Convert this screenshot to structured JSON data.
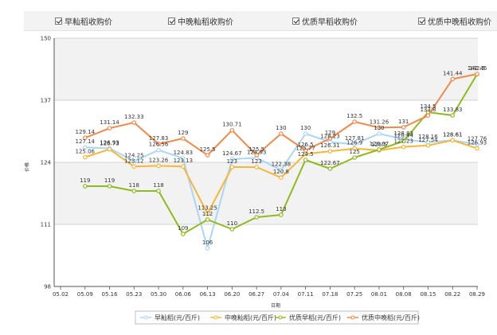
{
  "toggles": [
    {
      "label": "早籼稻收购价",
      "checked": true
    },
    {
      "label": "中晚籼稻收购价",
      "checked": true
    },
    {
      "label": "优质早稻收购价",
      "checked": true
    },
    {
      "label": "优质中晚稻收购价",
      "checked": true
    }
  ],
  "chart_data": {
    "type": "line",
    "title": "",
    "xlabel": "日期",
    "ylabel": "价格",
    "ylim": [
      98,
      150
    ],
    "yticks": [
      98,
      111,
      124,
      137,
      150
    ],
    "grid": true,
    "legend_position": "bottom",
    "categories": [
      "05.02",
      "05.09",
      "05.16",
      "05.23",
      "05.30",
      "06.06",
      "06.13",
      "06.20",
      "06.27",
      "07.04",
      "07.11",
      "07.18",
      "07.25",
      "08.01",
      "08.08",
      "08.15",
      "08.22",
      "08.29"
    ],
    "series": [
      {
        "name": "早籼稻(元/百斤)",
        "color": "#a9d6f5",
        "values": [
          null,
          127.14,
          126.93,
          124.25,
          126.56,
          124.83,
          106,
          124.67,
          124.93,
          122.38,
          130,
          128.23,
          127.81,
          130,
          128.83,
          128.16,
          128.61,
          127.76
        ],
        "labels": [
          "",
          "127.14",
          "126.93",
          "124.25",
          "126.56",
          "124.83",
          "106",
          "124.67",
          "124.93",
          "122.38",
          "130",
          "128.23",
          "127.81",
          "130",
          "128.83",
          "128.16",
          "128.61",
          "127.76"
        ]
      },
      {
        "name": "中晚籼稻(元/百斤)",
        "color": "#f6b637",
        "values": [
          null,
          125.06,
          126.73,
          123.12,
          123.26,
          123.13,
          113.25,
          123,
          123,
          120.8,
          125.77,
          126.31,
          126.9,
          126.5,
          127.23,
          127.54,
          128.61,
          126.93
        ],
        "labels": [
          "",
          "125.06",
          "126.73",
          "123.12",
          "123.26",
          "123.13",
          "113.25",
          "123",
          "123",
          "120.8",
          "125.77",
          "126.31",
          "126.9",
          "126.5",
          "127.23",
          "127.54",
          "128.61",
          "126.93"
        ]
      },
      {
        "name": "优质早稻(元/百斤)",
        "color": "#8fba1e",
        "values": [
          null,
          119,
          119,
          118,
          118,
          109,
          112,
          110,
          112.5,
          113,
          124.5,
          122.67,
          125,
          126.67,
          128.44,
          134.5,
          133.83,
          142.46
        ],
        "labels": [
          "",
          "119",
          "119",
          "118",
          "118",
          "109",
          "112",
          "110",
          "112.5",
          "113",
          "124.5",
          "122.67",
          "125",
          "126.67",
          "128.44",
          "134.5",
          "133.83",
          "142.46"
        ]
      },
      {
        "name": "优质中晚稻(元/百斤)",
        "color": "#f08a4b",
        "values": [
          null,
          129.14,
          131.14,
          132.33,
          127.83,
          129,
          125.5,
          130.71,
          125.5,
          130,
          126.5,
          129,
          132.5,
          131.26,
          131.36,
          133.8,
          141.44,
          142.5
        ],
        "labels": [
          "",
          "129.14",
          "131.14",
          "132.33",
          "127.83",
          "129",
          "125.5",
          "130.71",
          "125.5",
          "130",
          "126.5",
          "129",
          "132.5",
          "131.26",
          "131",
          "133.8",
          "141.44",
          "142.5"
        ]
      }
    ]
  }
}
